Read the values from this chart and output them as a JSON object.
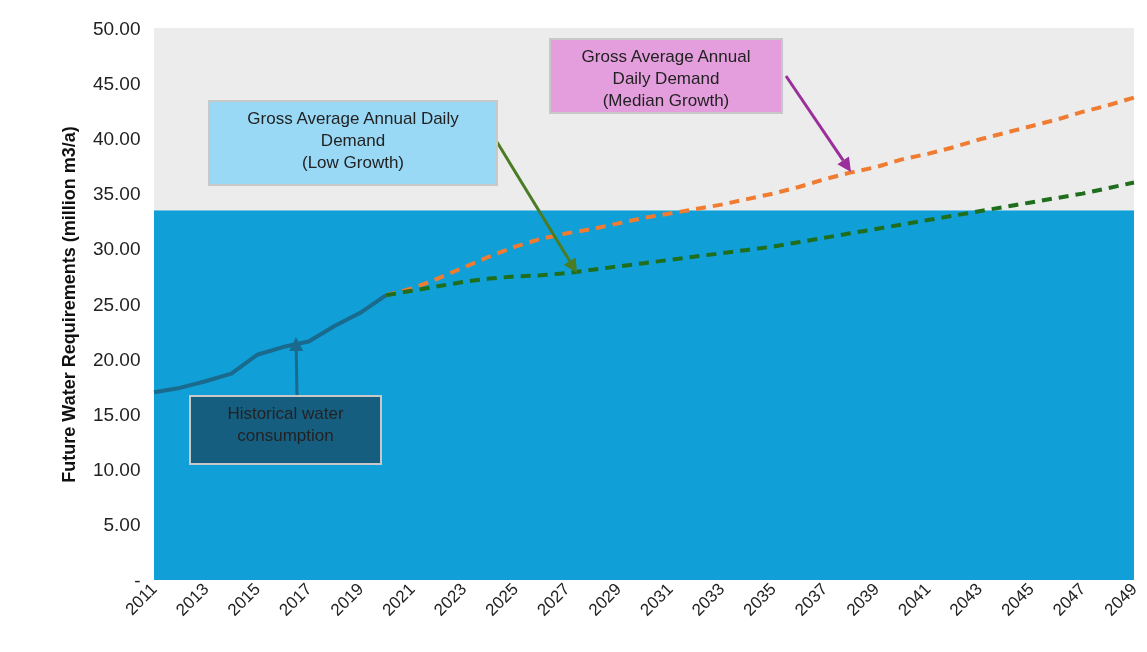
{
  "chart_data": {
    "type": "line",
    "ylabel": "Future Water Requirements (million m3/a)",
    "categories": [
      "2011",
      null,
      "2013",
      null,
      "2015",
      null,
      "2017",
      null,
      "2019",
      null,
      "2021",
      null,
      "2023",
      null,
      "2025",
      null,
      "2027",
      null,
      "2029",
      null,
      "2031",
      null,
      "2033",
      null,
      "2035",
      null,
      "2037",
      null,
      "2039",
      null,
      "2041",
      null,
      "2043",
      null,
      "2045",
      null,
      "2047",
      null,
      "2049"
    ],
    "series": [
      {
        "color": "#1a6a8e",
        "line_style": "solid",
        "values": [
          17.0,
          17.4,
          18.0,
          18.7,
          20.4,
          21.1,
          21.6,
          23.0,
          24.2,
          25.8,
          null,
          null,
          null,
          null,
          null,
          null,
          null,
          null,
          null,
          null,
          null,
          null,
          null,
          null,
          null,
          null,
          null,
          null,
          null,
          null,
          null,
          null,
          null,
          null,
          null,
          null,
          null,
          null,
          null
        ]
      },
      {
        "color": "#f07c31",
        "line_style": "dashed",
        "values": [
          null,
          null,
          null,
          null,
          null,
          null,
          null,
          null,
          null,
          25.8,
          26.4,
          27.3,
          28.3,
          29.3,
          30.2,
          30.9,
          31.4,
          31.8,
          32.3,
          32.8,
          33.2,
          33.6,
          34.0,
          34.5,
          35.0,
          35.6,
          36.3,
          36.9,
          37.4,
          38.1,
          38.6,
          39.2,
          39.9,
          40.5,
          41.1,
          41.7,
          42.4,
          43.0,
          43.7
        ]
      },
      {
        "color": "#1e6e1e",
        "line_style": "dashed",
        "values": [
          null,
          null,
          null,
          null,
          null,
          null,
          null,
          null,
          null,
          25.8,
          26.2,
          26.6,
          27.0,
          27.3,
          27.5,
          27.6,
          27.8,
          28.1,
          28.4,
          28.7,
          29.0,
          29.3,
          29.6,
          29.9,
          30.2,
          30.6,
          31.0,
          31.4,
          31.8,
          32.2,
          32.6,
          33.0,
          33.4,
          33.8,
          34.2,
          34.6,
          35.0,
          35.5,
          36.0
        ]
      }
    ],
    "ylim": [
      0,
      50
    ],
    "yticks": [
      {
        "value": 0,
        "label": "-"
      },
      {
        "value": 5,
        "label": "5.00"
      },
      {
        "value": 10,
        "label": "10.00"
      },
      {
        "value": 15,
        "label": "15.00"
      },
      {
        "value": 20,
        "label": "20.00"
      },
      {
        "value": 25,
        "label": "25.00"
      },
      {
        "value": 30,
        "label": "30.00"
      },
      {
        "value": 35,
        "label": "35.00"
      },
      {
        "value": 40,
        "label": "40.00"
      },
      {
        "value": 45,
        "label": "45.00"
      },
      {
        "value": 50,
        "label": "50.00"
      }
    ],
    "bands": [
      {
        "axis": "y",
        "from": 0,
        "to": 33.5,
        "color": "#109fd6"
      },
      {
        "axis": "y",
        "from": 33.5,
        "to": 50,
        "color": "#ececec"
      }
    ],
    "annotations": [
      "Gross Average Annual\nDaily Demand\n(Median Growth)",
      "Gross Average Annual Daily\nDemand\n(Low Growth)",
      "Historical water\nconsumption"
    ],
    "grid": false,
    "legend": false,
    "marker": "none"
  }
}
